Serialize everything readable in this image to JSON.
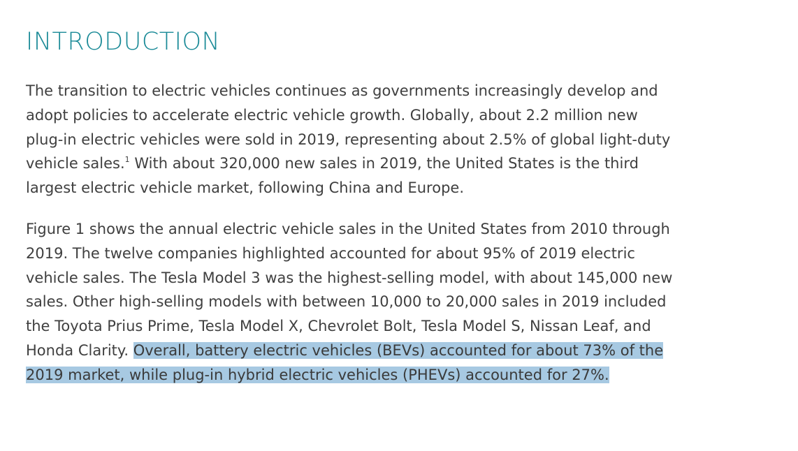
{
  "section": {
    "heading": "INTRODUCTION"
  },
  "paragraph1": {
    "lines": [
      "The transition to electric vehicles continues as governments increasingly develop and",
      "adopt policies to accelerate electric vehicle growth. Globally, about 2.2 million new",
      "plug-in electric vehicles were sold in 2019, representing about 2.5% of global light-duty"
    ],
    "line4_before_footnote": "vehicle sales.",
    "footnote_marker": "1",
    "line4_after_footnote": " With about 320,000 new sales in 2019, the United States is the third",
    "line5": "largest electric vehicle market, following China and Europe."
  },
  "paragraph2": {
    "lines": [
      "Figure 1 shows the annual electric vehicle sales in the United States from 2010 through",
      "2019. The twelve companies highlighted accounted for about 95% of 2019 electric",
      "vehicle sales. The Tesla Model 3 was the highest-selling model, with about 145,000 new",
      "sales. Other high-selling models with between 10,000 to 20,000 sales in 2019 included",
      "the Toyota Prius Prime, Tesla Model X, Chevrolet Bolt, Tesla Model S, Nissan Leaf, and"
    ],
    "line6_plain": "Honda Clarity. ",
    "line6_highlighted": "Overall, battery electric vehicles (BEVs) accounted for about 73% of the",
    "line7_highlighted": "2019 market, while plug-in hybrid electric vehicles (PHEVs) accounted for 27%."
  },
  "colors": {
    "heading": "#1a8a97",
    "body_text": "#3f3f3f",
    "selection_highlight": "#a7c9e2"
  }
}
